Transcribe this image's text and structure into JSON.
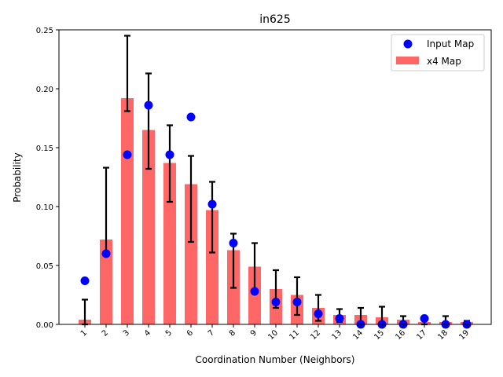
{
  "chart_data": {
    "type": "bar",
    "title": "in625",
    "xlabel": "Coordination Number  (Neighbors)",
    "ylabel": "Probability",
    "ylim": [
      0,
      0.25
    ],
    "yticks": [
      "0.00",
      "0.05",
      "0.10",
      "0.15",
      "0.20",
      "0.25"
    ],
    "categories": [
      "1",
      "2",
      "3",
      "4",
      "5",
      "6",
      "7",
      "8",
      "9",
      "10",
      "11",
      "12",
      "13",
      "14",
      "15",
      "16",
      "17",
      "18",
      "19"
    ],
    "series": [
      {
        "name": "x4 Map",
        "kind": "bar",
        "color": "#ff6666",
        "values": [
          0.004,
          0.072,
          0.192,
          0.165,
          0.137,
          0.119,
          0.097,
          0.063,
          0.049,
          0.03,
          0.025,
          0.014,
          0.008,
          0.008,
          0.006,
          0.004,
          0.002,
          0.002,
          0.002
        ],
        "error_low": [
          0.0,
          0.061,
          0.181,
          0.132,
          0.104,
          0.07,
          0.061,
          0.031,
          0.028,
          0.014,
          0.008,
          0.003,
          0.002,
          0.0,
          0.0,
          0.0,
          0.0,
          0.0,
          0.0
        ],
        "error_high": [
          0.021,
          0.133,
          0.245,
          0.213,
          0.169,
          0.143,
          0.121,
          0.077,
          0.069,
          0.046,
          0.04,
          0.025,
          0.013,
          0.014,
          0.015,
          0.007,
          0.005,
          0.007,
          0.003
        ]
      },
      {
        "name": "Input Map",
        "kind": "marker",
        "color": "#0000ff",
        "values": [
          0.037,
          0.06,
          0.144,
          0.186,
          0.144,
          0.176,
          0.102,
          0.069,
          0.028,
          0.019,
          0.019,
          0.009,
          0.005,
          0.0,
          0.0,
          0.0,
          0.005,
          0.0,
          0.0
        ]
      }
    ],
    "legend": {
      "position": "top-right",
      "entries": [
        "Input Map",
        "x4 Map"
      ]
    }
  }
}
